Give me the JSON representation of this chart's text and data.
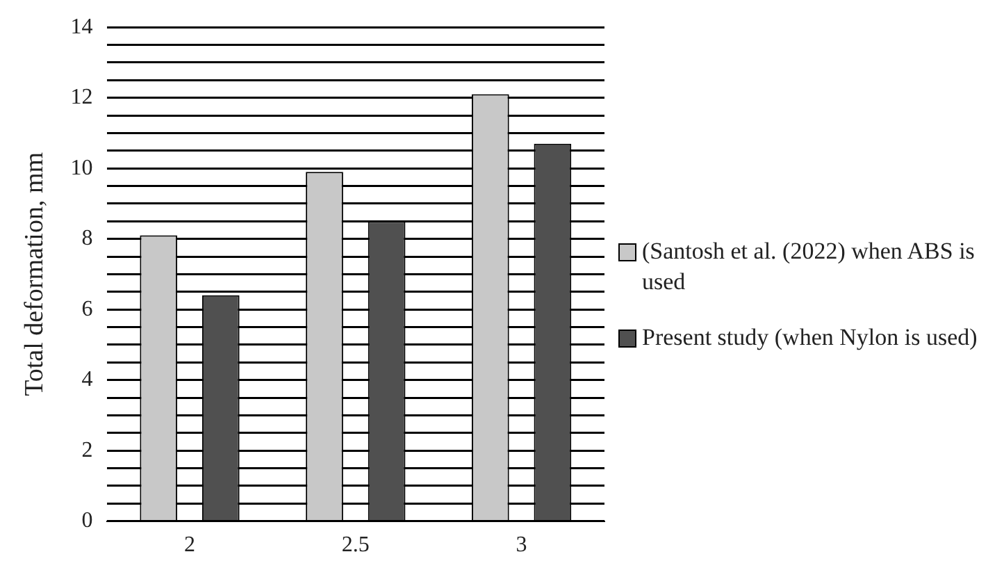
{
  "chart_data": {
    "type": "bar",
    "ylabel": "Total deformation, mm",
    "categories": [
      "2",
      "2.5",
      "3"
    ],
    "series": [
      {
        "name": "(Santosh et al. (2022) when ABS is used",
        "color": "#c8c8c8",
        "values": [
          8.1,
          9.9,
          12.1
        ]
      },
      {
        "name": "Present study (when Nylon is used)",
        "color": "#505050",
        "values": [
          6.4,
          8.5,
          10.7
        ]
      }
    ],
    "ylim": [
      0,
      14
    ],
    "yticks": [
      0,
      {
        "value": 0.5,
        "label": null
      },
      {
        "value": 1,
        "label": null
      },
      {
        "value": 1.5,
        "label": null
      },
      2,
      {
        "value": 2.5,
        "label": null
      },
      {
        "value": 3,
        "label": null
      },
      {
        "value": 3.5,
        "label": null
      },
      4,
      {
        "value": 4.5,
        "label": null
      },
      {
        "value": 5,
        "label": null
      },
      {
        "value": 5.5,
        "label": null
      },
      6,
      {
        "value": 6.5,
        "label": null
      },
      {
        "value": 7,
        "label": null
      },
      {
        "value": 7.5,
        "label": null
      },
      8,
      {
        "value": 8.5,
        "label": null
      },
      {
        "value": 9,
        "label": null
      },
      {
        "value": 9.5,
        "label": null
      },
      10,
      {
        "value": 10.5,
        "label": null
      },
      {
        "value": 11,
        "label": null
      },
      {
        "value": 11.5,
        "label": null
      },
      12,
      {
        "value": 12.5,
        "label": null
      },
      {
        "value": 13,
        "label": null
      },
      {
        "value": 13.5,
        "label": null
      },
      14
    ],
    "grid": "y",
    "legend": "right"
  }
}
